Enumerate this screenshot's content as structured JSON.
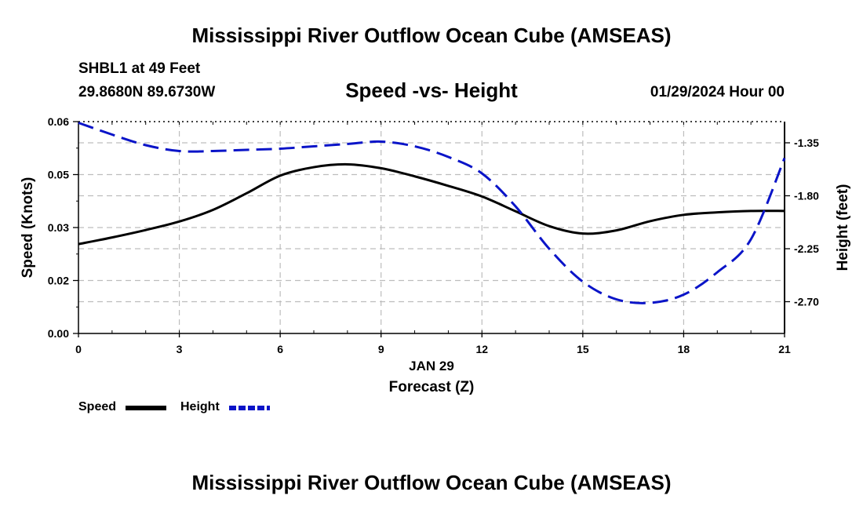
{
  "header": {
    "title_top": "Mississippi River Outflow Ocean Cube (AMSEAS)",
    "title_bottom": "Mississippi River Outflow Ocean Cube (AMSEAS)",
    "station": "SHBL1 at 49 Feet",
    "coordinates": "29.8680N  89.6730W",
    "datetime": "01/29/2024 Hour 00"
  },
  "legend": {
    "speed_label": "Speed",
    "height_label": "Height"
  },
  "colors": {
    "speed": "#000000",
    "height": "#0a14c8",
    "grid": "#bdbdbd"
  },
  "chart_data": {
    "type": "line",
    "title": "Speed -vs- Height",
    "xlabel": "Forecast (Z)",
    "xlabel_date": "JAN 29",
    "ylabel": "Speed (Knots)",
    "y2label": "Height (feet)",
    "grid": true,
    "legend_position": "bottom-left",
    "xlim": [
      0,
      21
    ],
    "ylim": [
      0,
      0.06
    ],
    "y2lim": [
      -2.97,
      -1.17
    ],
    "x_ticks": [
      0,
      3,
      6,
      9,
      12,
      15,
      18,
      21
    ],
    "x_tick_labels": [
      "0",
      "3",
      "6",
      "9",
      "12",
      "15",
      "18",
      "21"
    ],
    "y_ticks": [
      0,
      0.015,
      0.03,
      0.045,
      0.06
    ],
    "y_tick_labels": [
      "0.00",
      "0.02",
      "0.03",
      "0.05",
      "0.06"
    ],
    "y2_ticks": [
      -2.7,
      -2.25,
      -1.8,
      -1.35
    ],
    "y2_tick_labels": [
      "-2.70",
      "-2.25",
      "-1.80",
      "-1.35"
    ],
    "series": [
      {
        "name": "Speed",
        "axis": "left",
        "style": "solid",
        "x": [
          0,
          1,
          2,
          3,
          4,
          5,
          6,
          7,
          8,
          9,
          10,
          11,
          12,
          13,
          14,
          15,
          16,
          17,
          18,
          19,
          20,
          21
        ],
        "values": [
          0.0253,
          0.0272,
          0.0293,
          0.0317,
          0.035,
          0.0397,
          0.0447,
          0.0471,
          0.0479,
          0.0468,
          0.0445,
          0.0418,
          0.0388,
          0.0346,
          0.0304,
          0.0283,
          0.0292,
          0.0318,
          0.0336,
          0.0343,
          0.0347,
          0.0347
        ]
      },
      {
        "name": "Height",
        "axis": "right",
        "style": "dashed",
        "x": [
          0,
          1,
          2,
          3,
          4,
          5,
          6,
          7,
          8,
          9,
          10,
          11,
          12,
          13,
          14,
          15,
          16,
          17,
          18,
          19,
          20,
          21
        ],
        "values": [
          -1.18,
          -1.28,
          -1.37,
          -1.42,
          -1.42,
          -1.41,
          -1.4,
          -1.38,
          -1.36,
          -1.34,
          -1.38,
          -1.47,
          -1.61,
          -1.89,
          -2.25,
          -2.53,
          -2.68,
          -2.71,
          -2.64,
          -2.45,
          -2.17,
          -1.48
        ]
      }
    ]
  }
}
